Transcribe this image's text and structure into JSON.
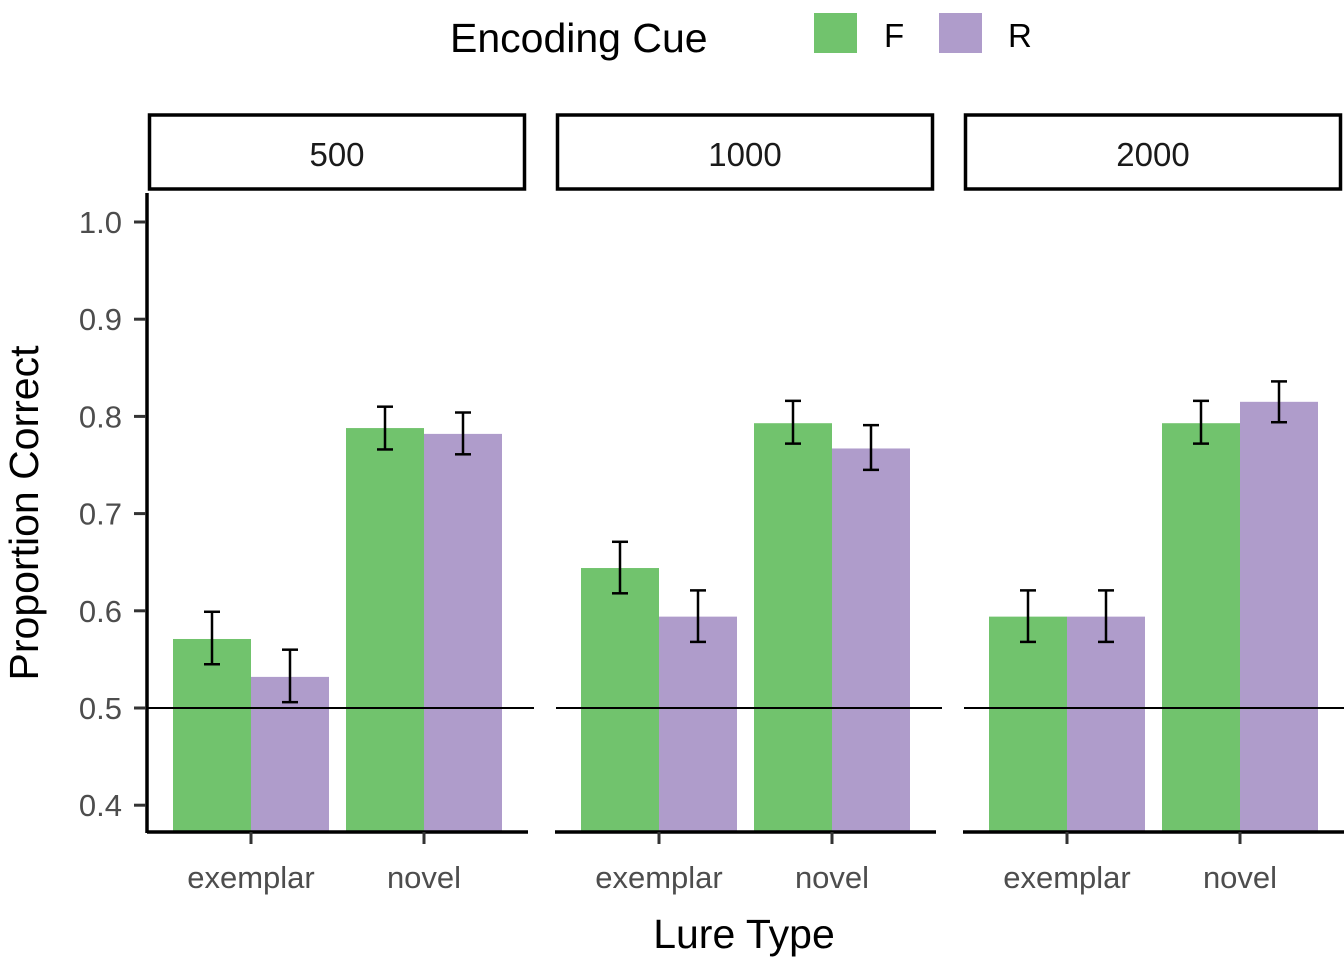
{
  "chart_data": {
    "type": "bar",
    "title": "",
    "xlabel": "Lure Type",
    "ylabel": "Proportion Correct",
    "ylim": [
      0.3725,
      1.025
    ],
    "yticks": [
      "0.4",
      "0.5",
      "0.6",
      "0.7",
      "0.8",
      "0.9",
      "1.0"
    ],
    "reference_line": 0.5,
    "legend": {
      "title": "Encoding Cue",
      "position": "top",
      "entries": [
        "F",
        "R"
      ]
    },
    "colors": {
      "F": "#71c36d",
      "R": "#af9ccb"
    },
    "categories": [
      "exemplar",
      "novel"
    ],
    "facets": [
      {
        "label": "500",
        "series": [
          {
            "name": "F",
            "values": [
              0.571,
              0.788
            ],
            "lower": [
              0.545,
              0.766
            ],
            "upper": [
              0.599,
              0.81
            ]
          },
          {
            "name": "R",
            "values": [
              0.532,
              0.782
            ],
            "lower": [
              0.506,
              0.761
            ],
            "upper": [
              0.56,
              0.804
            ]
          }
        ]
      },
      {
        "label": "1000",
        "series": [
          {
            "name": "F",
            "values": [
              0.644,
              0.793
            ],
            "lower": [
              0.618,
              0.772
            ],
            "upper": [
              0.671,
              0.816
            ]
          },
          {
            "name": "R",
            "values": [
              0.594,
              0.767
            ],
            "lower": [
              0.568,
              0.745
            ],
            "upper": [
              0.621,
              0.791
            ]
          }
        ]
      },
      {
        "label": "2000",
        "series": [
          {
            "name": "F",
            "values": [
              0.594,
              0.793
            ],
            "lower": [
              0.568,
              0.772
            ],
            "upper": [
              0.621,
              0.816
            ]
          },
          {
            "name": "R",
            "values": [
              0.594,
              0.815
            ],
            "lower": [
              0.568,
              0.794
            ],
            "upper": [
              0.621,
              0.836
            ]
          }
        ]
      }
    ]
  }
}
